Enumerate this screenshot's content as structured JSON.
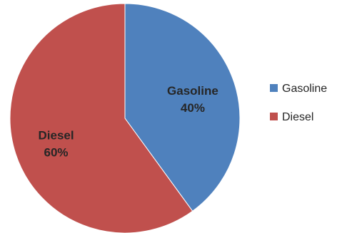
{
  "chart_data": {
    "type": "pie",
    "title": "",
    "categories": [
      "Gasoline",
      "Diesel"
    ],
    "values": [
      40,
      60
    ],
    "data_labels": [
      "40%",
      "60%"
    ],
    "colors": [
      "#4f81bd",
      "#c0504d"
    ],
    "legend": {
      "placement": "right",
      "entries": [
        "Gasoline",
        "Diesel"
      ]
    }
  }
}
